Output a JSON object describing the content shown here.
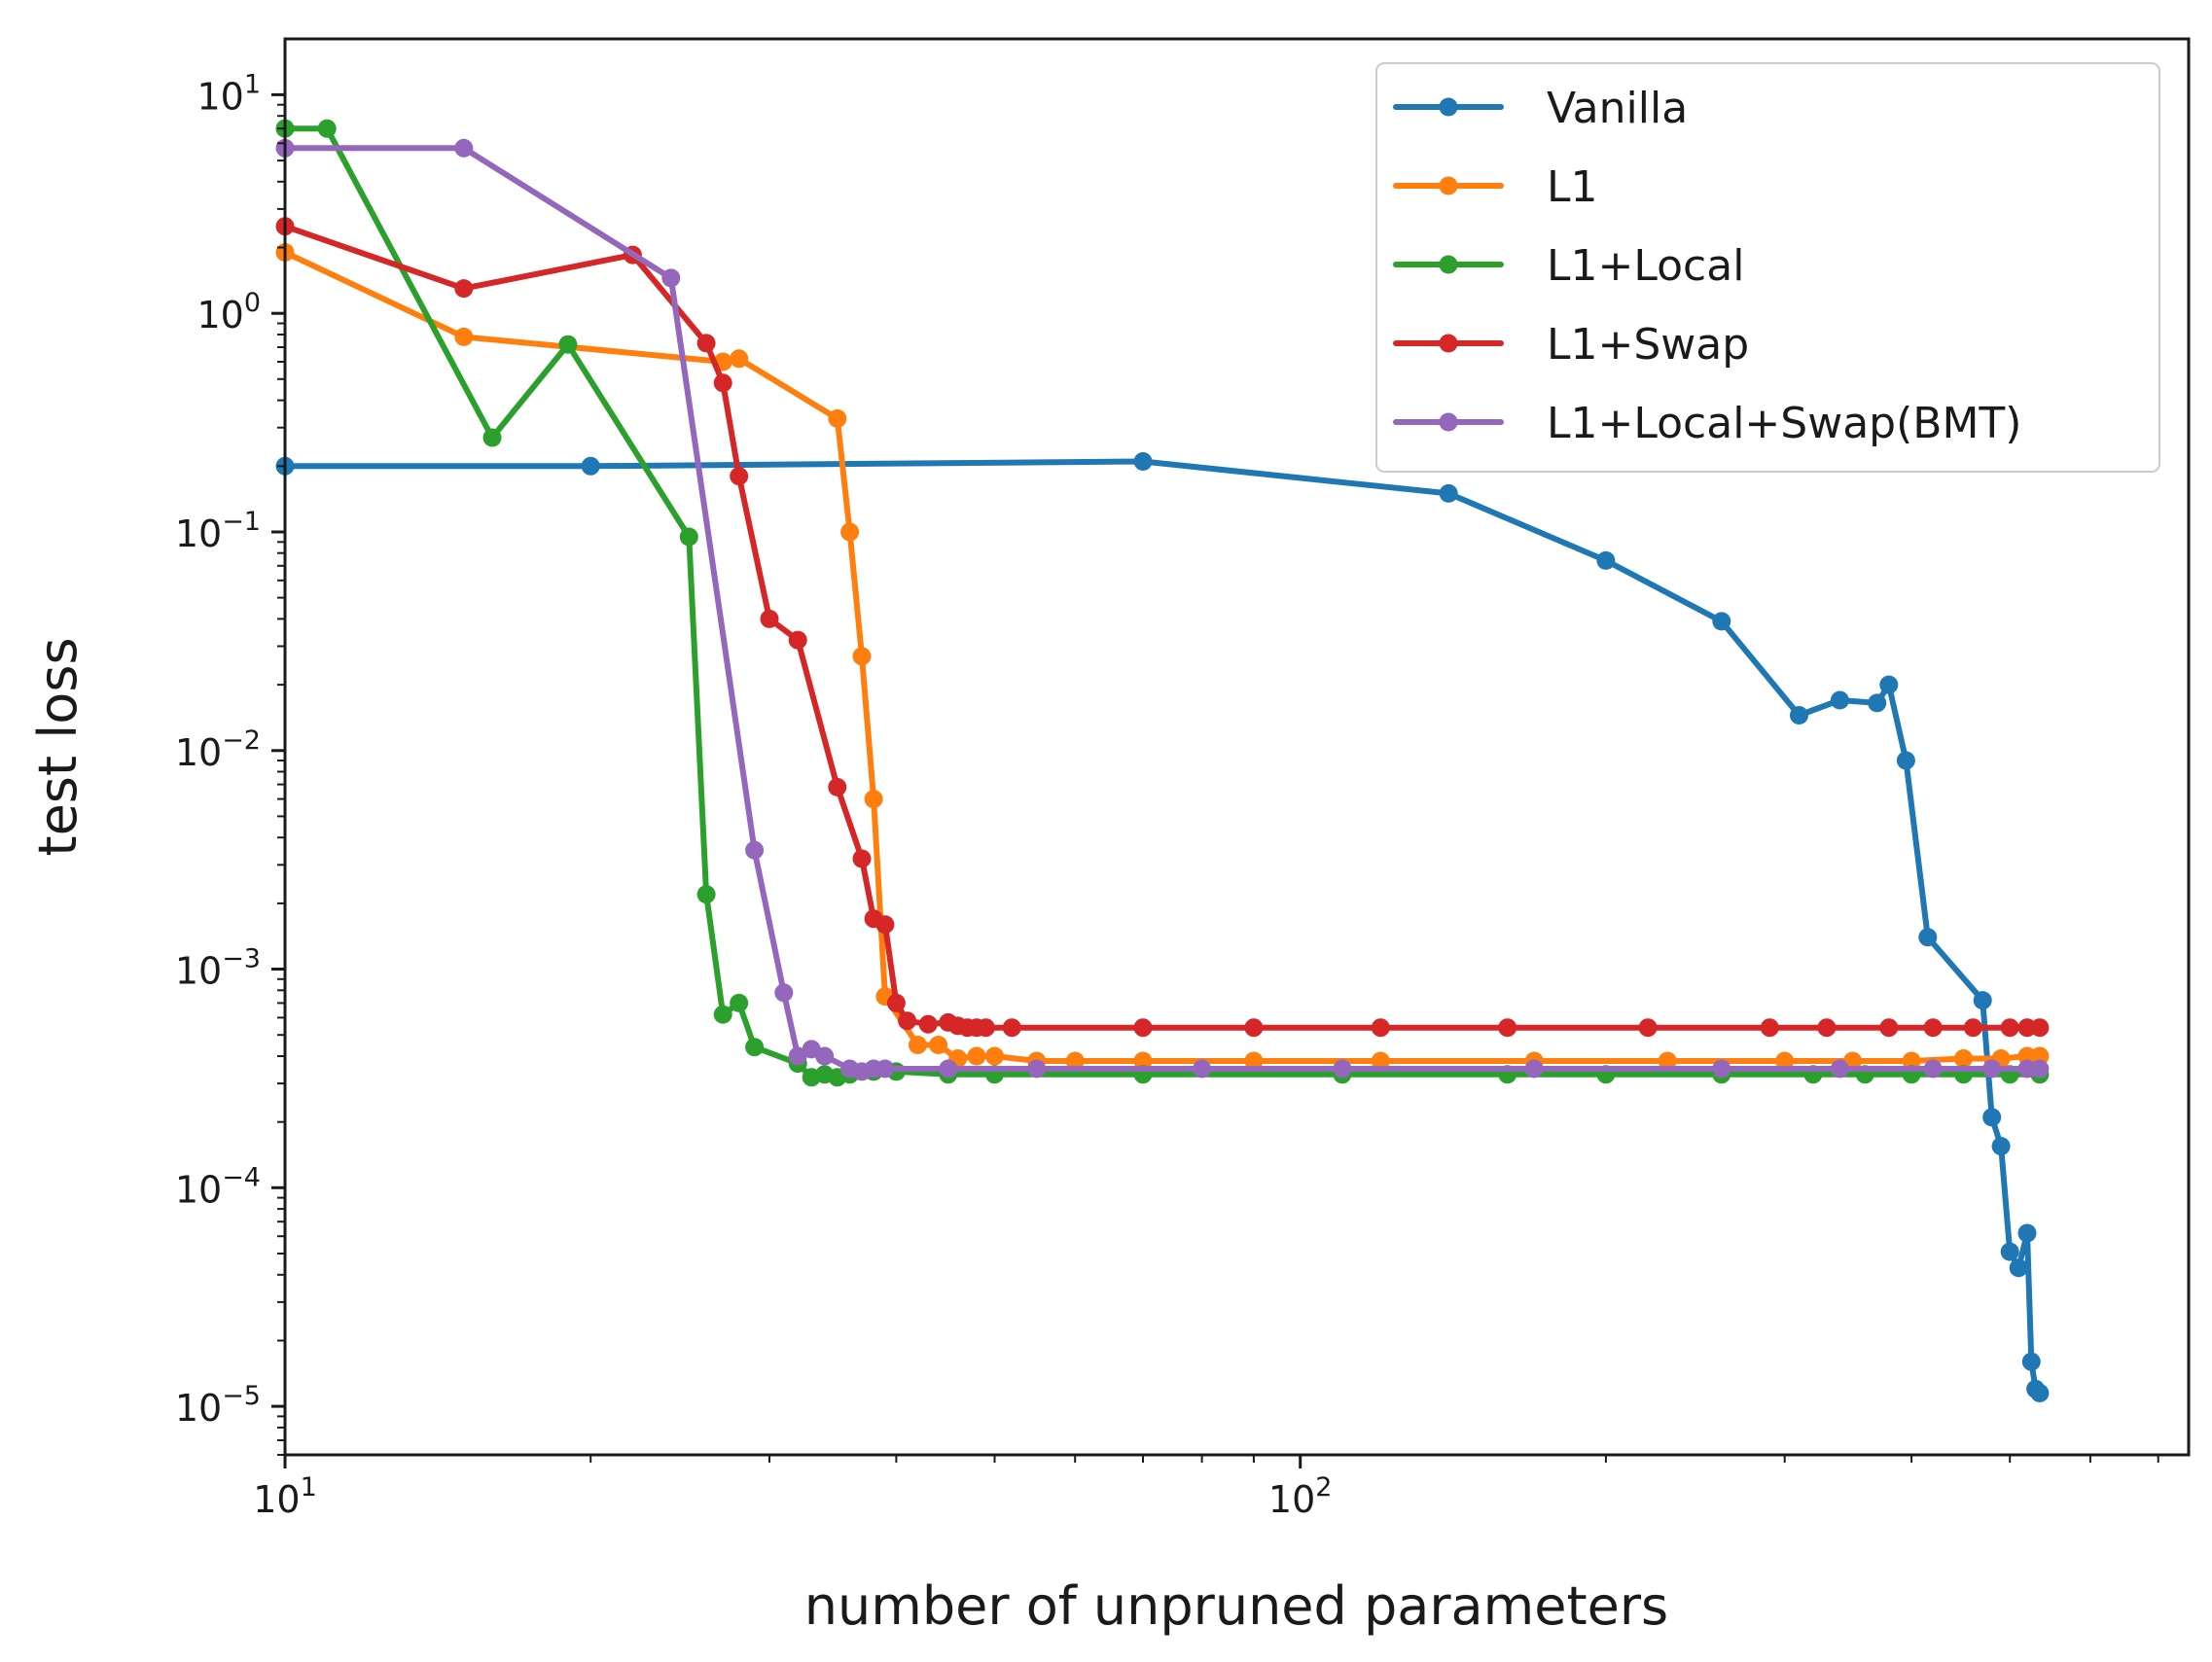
{
  "chart_data": {
    "type": "line",
    "xlabel": "number of unpruned parameters",
    "ylabel": "test loss",
    "xscale": "log",
    "yscale": "log",
    "xlim": [
      10,
      750
    ],
    "ylim": [
      6e-06,
      18
    ],
    "x_ticks": [
      {
        "value": 10,
        "base": "10",
        "exp": "1"
      },
      {
        "value": 100,
        "base": "10",
        "exp": "2"
      }
    ],
    "y_ticks": [
      {
        "value": 10,
        "base": "10",
        "exp": "1"
      },
      {
        "value": 1,
        "base": "10",
        "exp": "0"
      },
      {
        "value": 0.1,
        "base": "10",
        "exp": "−1"
      },
      {
        "value": 0.01,
        "base": "10",
        "exp": "−2"
      },
      {
        "value": 0.001,
        "base": "10",
        "exp": "−3"
      },
      {
        "value": 0.0001,
        "base": "10",
        "exp": "−4"
      },
      {
        "value": 1e-05,
        "base": "10",
        "exp": "−5"
      }
    ],
    "grid": false,
    "legend_position": "top-right",
    "series": [
      {
        "name": "Vanilla",
        "color": "#1f77b4",
        "x": [
          10,
          20,
          70,
          140,
          200,
          260,
          310,
          340,
          370,
          380,
          395,
          415,
          470,
          480,
          490,
          500,
          510,
          520,
          525,
          530,
          535
        ],
        "y": [
          0.2,
          0.2,
          0.21,
          0.15,
          0.074,
          0.039,
          0.0145,
          0.017,
          0.0165,
          0.02,
          0.009,
          0.0014,
          0.00072,
          0.00021,
          0.000155,
          5.1e-05,
          4.3e-05,
          6.2e-05,
          1.6e-05,
          1.2e-05,
          1.15e-05
        ]
      },
      {
        "name": "L1",
        "color": "#ff7f0e",
        "x": [
          10,
          15,
          27,
          28,
          35,
          36,
          37,
          38,
          39,
          42,
          44,
          46,
          48,
          50,
          55,
          60,
          70,
          90,
          120,
          170,
          230,
          300,
          350,
          400,
          450,
          490,
          520,
          535
        ],
        "y": [
          1.9,
          0.78,
          0.6,
          0.62,
          0.33,
          0.1,
          0.027,
          0.006,
          0.00075,
          0.00045,
          0.00045,
          0.00039,
          0.0004,
          0.0004,
          0.00038,
          0.00038,
          0.00038,
          0.00038,
          0.00038,
          0.00038,
          0.00038,
          0.00038,
          0.00038,
          0.00038,
          0.00039,
          0.00039,
          0.0004,
          0.0004
        ]
      },
      {
        "name": "L1+Local",
        "color": "#2ca02c",
        "x": [
          10,
          11,
          16,
          19,
          25,
          26,
          27,
          28,
          29,
          32,
          33,
          34,
          35,
          36,
          38,
          40,
          45,
          50,
          70,
          110,
          160,
          200,
          260,
          320,
          360,
          400,
          450,
          500,
          535
        ],
        "y": [
          7,
          7,
          0.27,
          0.72,
          0.095,
          0.0022,
          0.00062,
          0.0007,
          0.00044,
          0.00037,
          0.00032,
          0.00033,
          0.00032,
          0.00033,
          0.00034,
          0.00034,
          0.00033,
          0.00033,
          0.00033,
          0.00033,
          0.00033,
          0.00033,
          0.00033,
          0.00033,
          0.00033,
          0.00033,
          0.00033,
          0.00033,
          0.00033
        ]
      },
      {
        "name": "L1+Swap",
        "color": "#d62728",
        "x": [
          10,
          15,
          22,
          26,
          27,
          28,
          30,
          32,
          35,
          37,
          38,
          39,
          40,
          41,
          43,
          45,
          46,
          47,
          48,
          49,
          52,
          70,
          90,
          120,
          160,
          220,
          290,
          330,
          380,
          420,
          460,
          500,
          520,
          535
        ],
        "y": [
          2.5,
          1.3,
          1.85,
          0.73,
          0.48,
          0.18,
          0.04,
          0.032,
          0.0068,
          0.0032,
          0.0017,
          0.0016,
          0.0007,
          0.00058,
          0.00056,
          0.00057,
          0.00055,
          0.00054,
          0.00054,
          0.00054,
          0.00054,
          0.00054,
          0.00054,
          0.00054,
          0.00054,
          0.00054,
          0.00054,
          0.00054,
          0.00054,
          0.00054,
          0.00054,
          0.00054,
          0.00054,
          0.00054
        ]
      },
      {
        "name": "L1+Local+Swap(BMT)",
        "color": "#9467bd",
        "x": [
          10,
          15,
          24,
          29,
          31,
          32,
          33,
          34,
          36,
          37,
          38,
          39,
          45,
          55,
          80,
          110,
          170,
          260,
          340,
          420,
          480,
          520,
          535
        ],
        "y": [
          5.7,
          5.7,
          1.45,
          0.0035,
          0.00078,
          0.0004,
          0.00043,
          0.0004,
          0.00035,
          0.00034,
          0.00035,
          0.00035,
          0.00035,
          0.00035,
          0.00035,
          0.00035,
          0.00035,
          0.00035,
          0.00035,
          0.00035,
          0.00035,
          0.00035,
          0.00035
        ]
      }
    ]
  }
}
